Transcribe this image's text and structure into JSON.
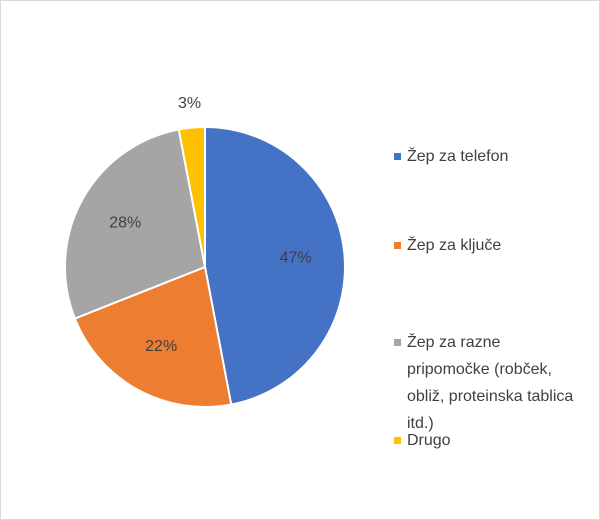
{
  "chart_data": {
    "type": "pie",
    "categories": [
      "Žep za telefon",
      "Žep za ključe",
      "Žep za razne pripomočke (robček, obliž, proteinska tablica itd.)",
      "Drugo"
    ],
    "values": [
      47,
      22,
      28,
      3
    ],
    "value_labels": [
      "47%",
      "22%",
      "28%",
      "3%"
    ],
    "colors": [
      "#4472c4",
      "#ed7d31",
      "#a5a5a5",
      "#ffc000"
    ],
    "legend": "right"
  }
}
